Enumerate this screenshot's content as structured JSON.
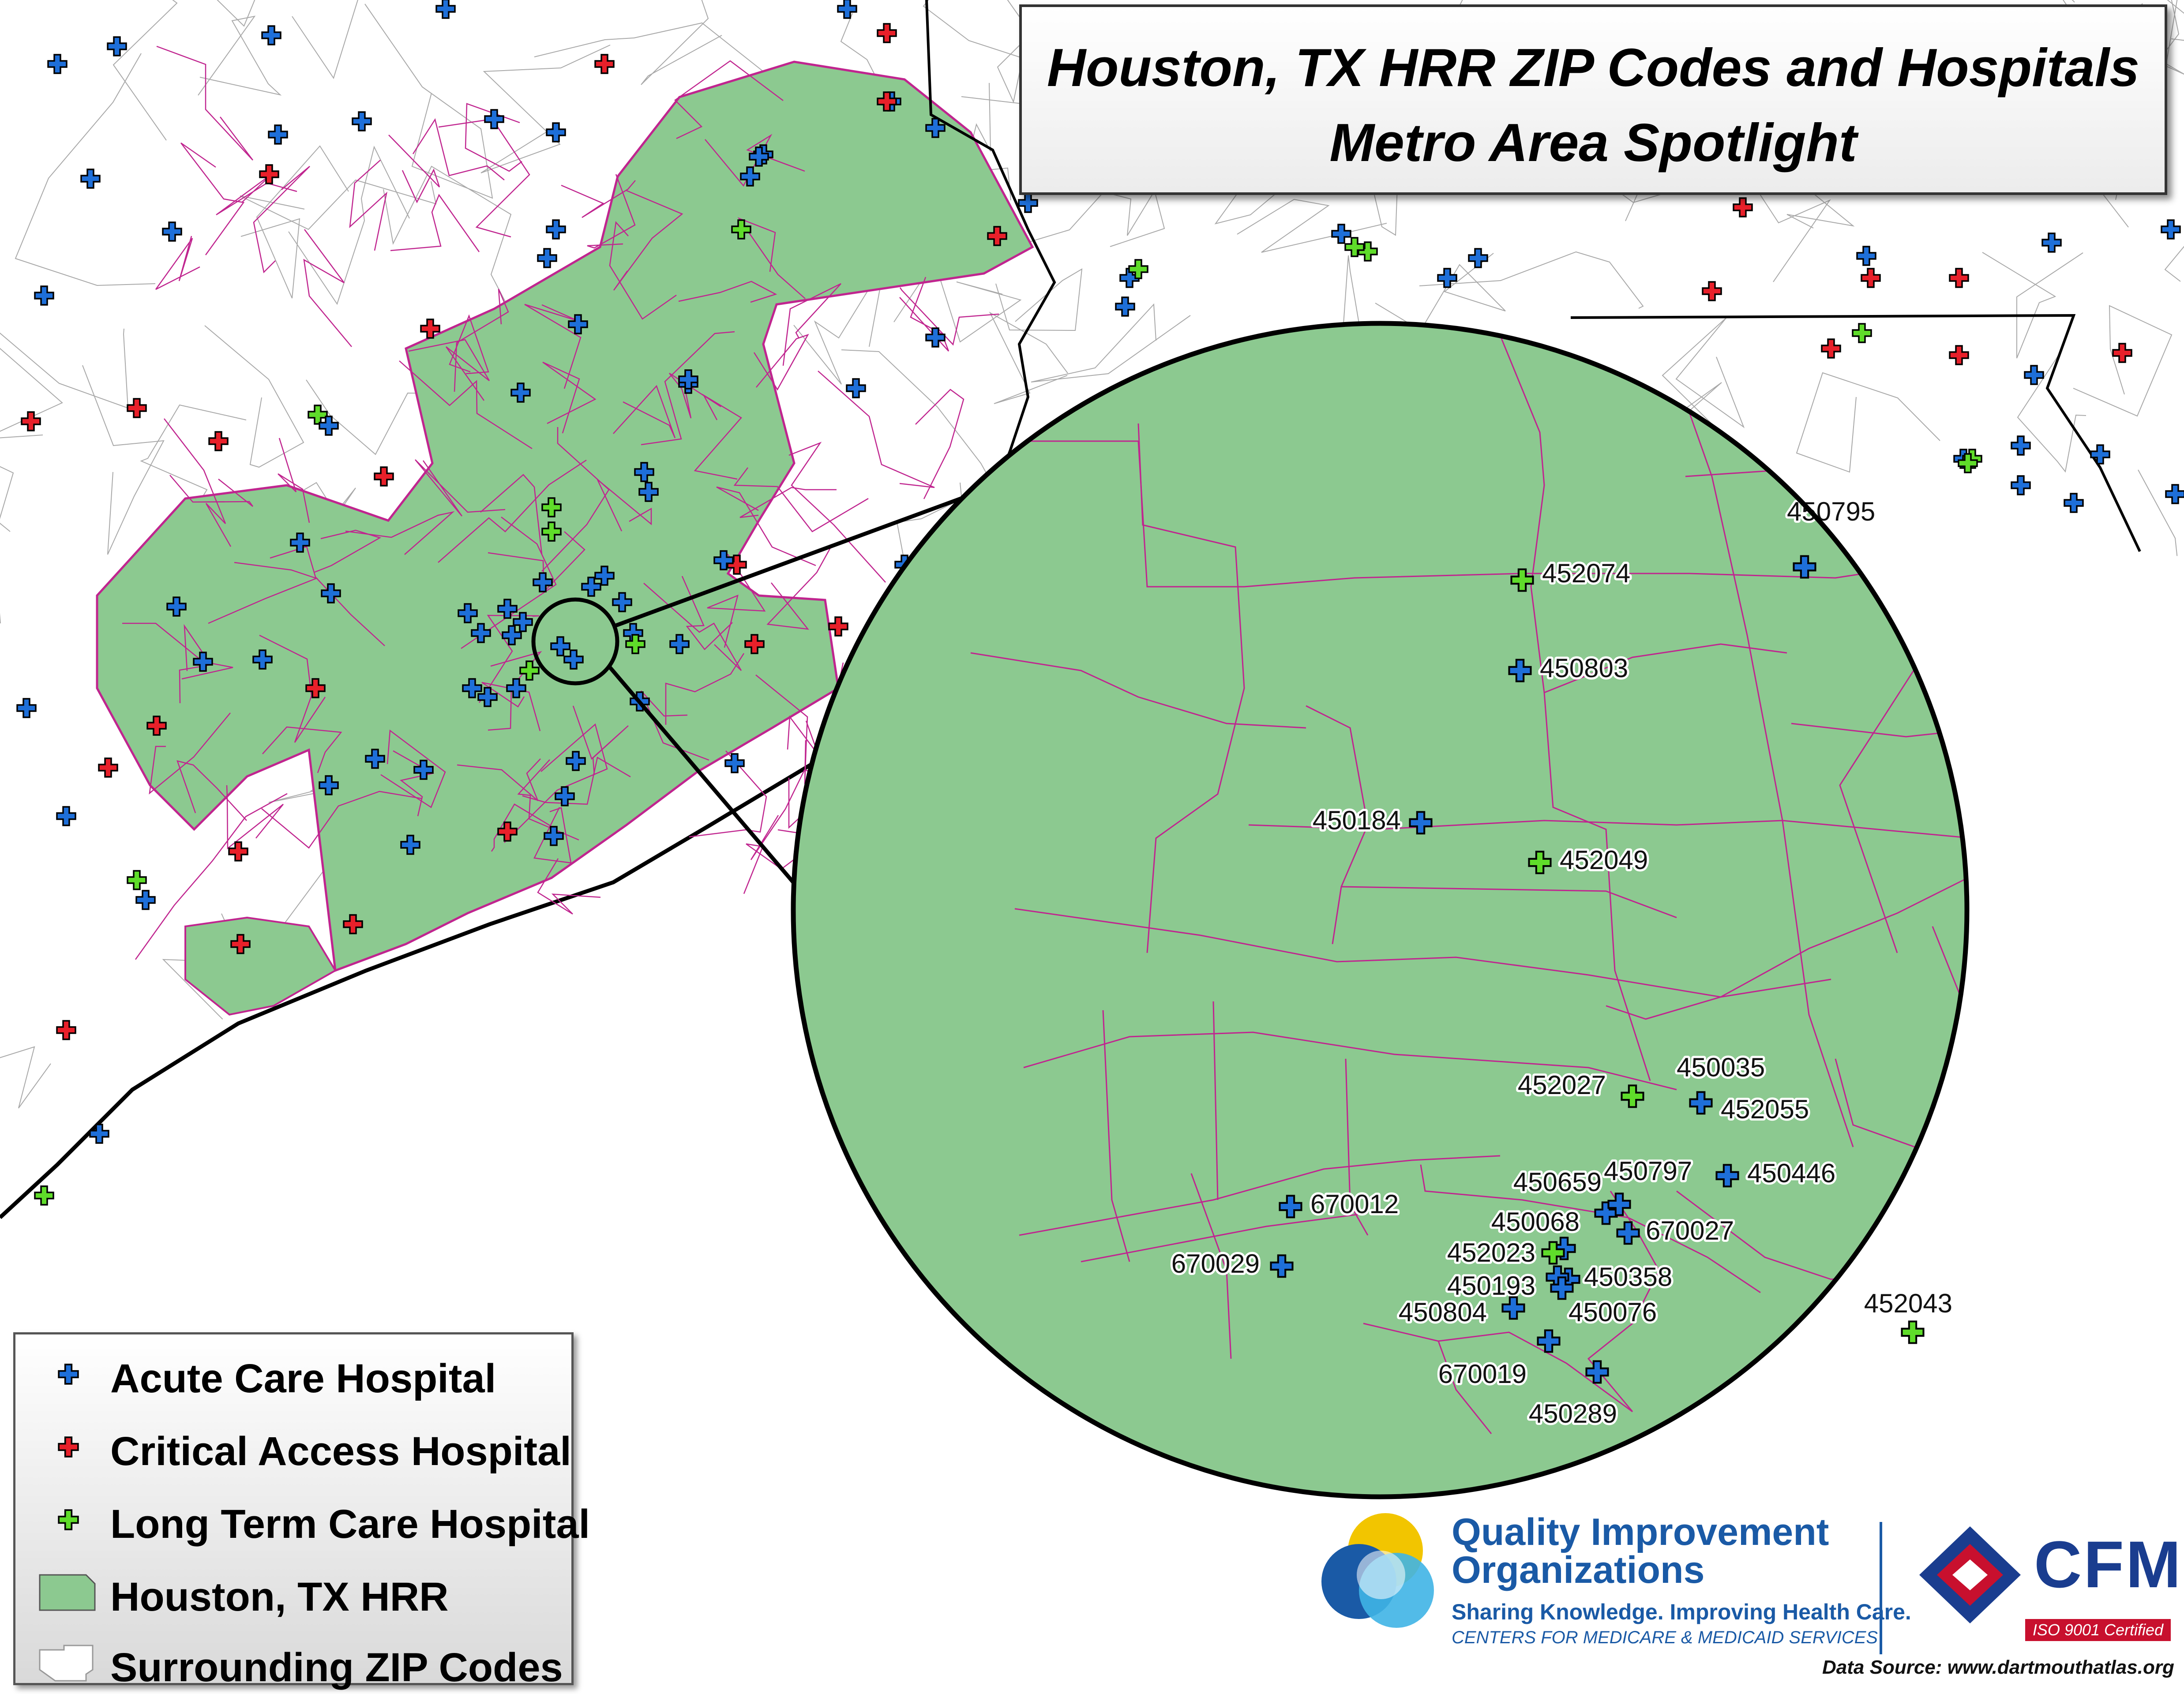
{
  "title": {
    "line1": "Houston, TX HRR ZIP Codes and Hospitals",
    "line2": "Metro Area Spotlight"
  },
  "legend": {
    "items": [
      {
        "label": "Acute Care Hospital",
        "symbol": "acute-cross-icon",
        "color": "#1e6fd9"
      },
      {
        "label": "Critical Access Hospital",
        "symbol": "critical-cross-icon",
        "color": "#e8202a"
      },
      {
        "label": "Long Term Care Hospital",
        "symbol": "ltc-cross-icon",
        "color": "#5fdc2a"
      },
      {
        "label": "Houston, TX HRR",
        "symbol": "hrr-area-swatch",
        "color": "#8cc990"
      },
      {
        "label": "Surrounding ZIP Codes",
        "symbol": "zip-area-swatch",
        "color": "#ffffff"
      }
    ]
  },
  "colors": {
    "hrr_fill": "#8cc990",
    "zip_border": "#c0258f",
    "surrounding_border": "#9a9a9a",
    "acute": "#1e6fd9",
    "critical": "#e8202a",
    "ltc": "#5fdc2a"
  },
  "spotlight": {
    "hospitals": [
      {
        "id": "450795",
        "type": "acute"
      },
      {
        "id": "452074",
        "type": "ltc"
      },
      {
        "id": "450803",
        "type": "acute"
      },
      {
        "id": "450184",
        "type": "acute"
      },
      {
        "id": "452049",
        "type": "ltc"
      },
      {
        "id": "452027",
        "type": "ltc"
      },
      {
        "id": "450035",
        "type": "acute"
      },
      {
        "id": "452055",
        "type": "acute"
      },
      {
        "id": "450659",
        "type": "acute"
      },
      {
        "id": "450797",
        "type": "acute"
      },
      {
        "id": "450446",
        "type": "acute"
      },
      {
        "id": "670012",
        "type": "acute"
      },
      {
        "id": "450068",
        "type": "acute"
      },
      {
        "id": "670027",
        "type": "acute"
      },
      {
        "id": "452023",
        "type": "ltc"
      },
      {
        "id": "450358",
        "type": "acute"
      },
      {
        "id": "670029",
        "type": "acute"
      },
      {
        "id": "450193",
        "type": "acute"
      },
      {
        "id": "450804",
        "type": "acute"
      },
      {
        "id": "450076",
        "type": "acute"
      },
      {
        "id": "452043",
        "type": "ltc"
      },
      {
        "id": "670019",
        "type": "acute"
      },
      {
        "id": "450289",
        "type": "acute"
      }
    ]
  },
  "logos": {
    "qio_title_line1": "Quality Improvement",
    "qio_title_line2": "Organizations",
    "qio_tagline": "Sharing Knowledge. Improving Health Care.",
    "qio_cms": "CENTERS FOR MEDICARE & MEDICAID SERVICES",
    "cfmc_name": "CFMC",
    "cfmc_iso": "ISO 9001 Certified"
  },
  "source": "Data Source: www.dartmouthatlas.org"
}
